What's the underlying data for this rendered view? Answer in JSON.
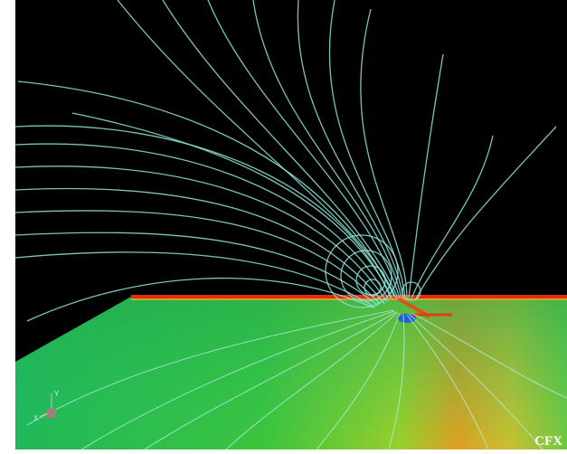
{
  "logo": "CFX",
  "axes": {
    "x": "X",
    "y": "Y"
  }
}
